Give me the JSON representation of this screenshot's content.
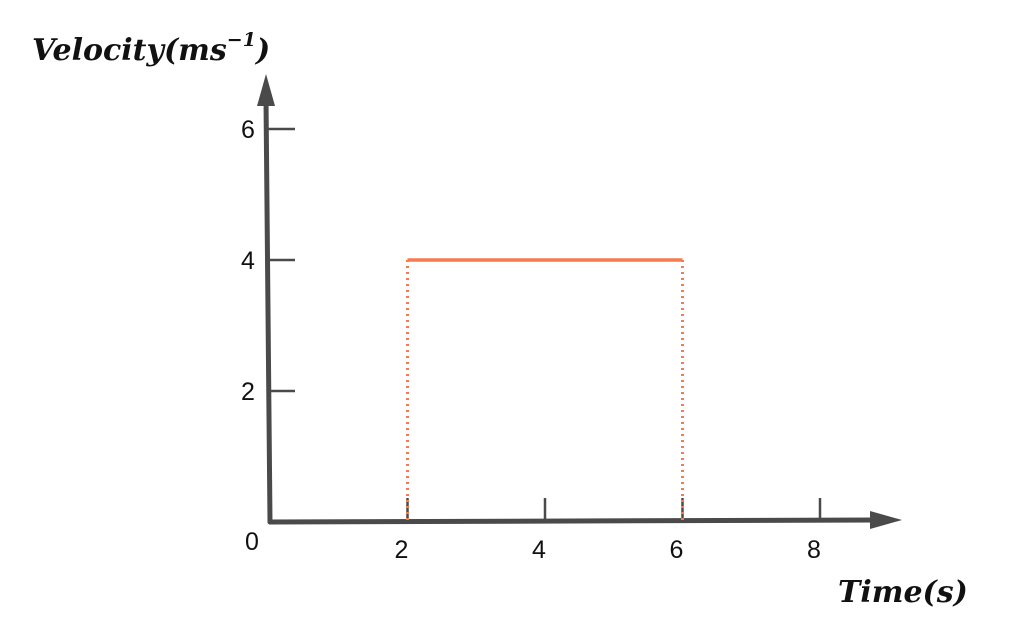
{
  "chart_data": {
    "type": "line",
    "xlabel": "Time(s)",
    "ylabel_main": "Velocity(ms",
    "ylabel_exp": "−1",
    "ylabel_close": ")",
    "origin_label": "0",
    "xlim": [
      0,
      8
    ],
    "ylim": [
      0,
      6
    ],
    "x_ticks": [
      2,
      4,
      6,
      8
    ],
    "x_tick_labels": [
      "2",
      "4",
      "6",
      "8"
    ],
    "y_ticks": [
      2,
      4,
      6
    ],
    "y_tick_labels": [
      "2",
      "4",
      "6"
    ],
    "grid": false,
    "series": [
      {
        "x": [
          2,
          6
        ],
        "y": [
          4,
          4
        ],
        "color": "#f47c4e"
      }
    ],
    "drop_lines_x": [
      2,
      6
    ],
    "axis_color": "#4a4a4a"
  }
}
